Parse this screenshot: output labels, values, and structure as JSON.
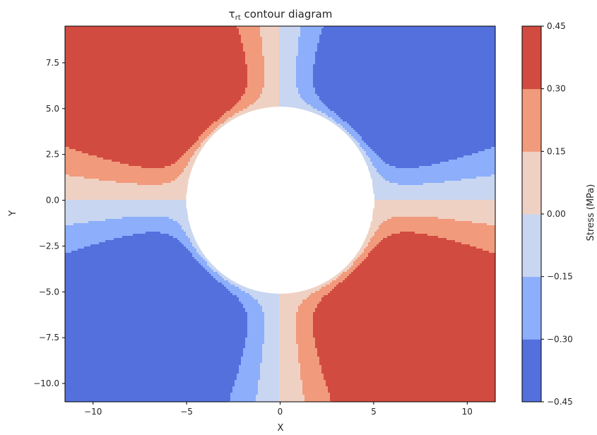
{
  "chart_data": {
    "type": "contour",
    "title_prefix": "τ",
    "title_subscript": "rt",
    "title_suffix": " contour diagram",
    "xlabel": "X",
    "ylabel": "Y",
    "xlim": [
      -11.5,
      11.5
    ],
    "ylim": [
      -11.0,
      9.5
    ],
    "xticks": [
      -10,
      -5,
      0,
      5,
      10
    ],
    "xtick_labels": [
      "−10",
      "−5",
      "0",
      "5",
      "10"
    ],
    "yticks": [
      7.5,
      5.0,
      2.5,
      0.0,
      -2.5,
      -5.0,
      -7.5,
      -10.0
    ],
    "ytick_labels": [
      "7.5",
      "5.0",
      "2.5",
      "0.0",
      "−2.5",
      "−5.0",
      "−7.5",
      "−10.0"
    ],
    "hole_center": [
      0,
      0
    ],
    "hole_radius": 5,
    "levels": [
      -0.45,
      -0.3,
      -0.15,
      0.0,
      0.15,
      0.3,
      0.45
    ],
    "level_colors": [
      "#5470dd",
      "#8caefb",
      "#c8d6f1",
      "#efd1c3",
      "#f19a7c",
      "#d24b40"
    ],
    "colorbar": {
      "label": "Stress (MPa)",
      "ticks": [
        0.45,
        0.3,
        0.15,
        0.0,
        -0.15,
        -0.3,
        -0.45
      ],
      "tick_labels": [
        "0.45",
        "0.30",
        "0.15",
        "0.00",
        "−0.15",
        "−0.30",
        "−0.45"
      ]
    },
    "grid": false
  }
}
